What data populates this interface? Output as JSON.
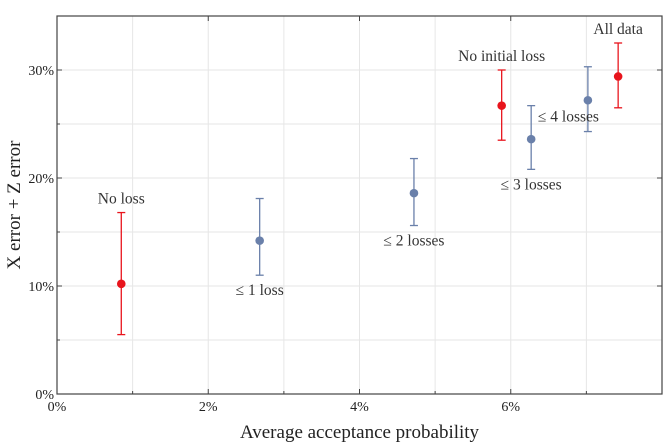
{
  "chart_data": {
    "type": "scatter",
    "title": "",
    "xlabel": "Average acceptance probability",
    "ylabel": "X error + Z error",
    "xlim": [
      0,
      8
    ],
    "ylim": [
      0,
      35
    ],
    "grid": true,
    "x_ticks": [
      {
        "value": 0,
        "label": "0%"
      },
      {
        "value": 2,
        "label": "2%"
      },
      {
        "value": 4,
        "label": "4%"
      },
      {
        "value": 6,
        "label": "6%"
      }
    ],
    "y_ticks": [
      {
        "value": 0,
        "label": "0%"
      },
      {
        "value": 10,
        "label": "10%"
      },
      {
        "value": 20,
        "label": "20%"
      },
      {
        "value": 30,
        "label": "30%"
      }
    ],
    "colors": {
      "red": "#e8141c",
      "blue": "#6a80aa"
    },
    "series": [
      {
        "name": "red",
        "points": [
          {
            "label": "No loss",
            "x": 0.85,
            "y": 10.2,
            "err_low": 5.5,
            "err_high": 16.8,
            "label_anchor": "above"
          },
          {
            "label": "No initial loss",
            "x": 5.88,
            "y": 26.7,
            "err_low": 23.5,
            "err_high": 30.0,
            "label_anchor": "above"
          },
          {
            "label": "All data",
            "x": 7.42,
            "y": 29.4,
            "err_low": 26.5,
            "err_high": 32.5,
            "label_anchor": "above"
          }
        ]
      },
      {
        "name": "blue",
        "points": [
          {
            "label": "≤ 1 loss",
            "x": 2.68,
            "y": 14.2,
            "err_low": 11.0,
            "err_high": 18.1,
            "label_anchor": "below"
          },
          {
            "label": "≤ 2 losses",
            "x": 4.72,
            "y": 18.6,
            "err_low": 15.6,
            "err_high": 21.8,
            "label_anchor": "below"
          },
          {
            "label": "≤ 3 losses",
            "x": 6.27,
            "y": 23.6,
            "err_low": 20.8,
            "err_high": 26.7,
            "label_anchor": "below"
          },
          {
            "label": "≤ 4 losses",
            "x": 7.02,
            "y": 27.2,
            "err_low": 24.3,
            "err_high": 30.3,
            "label_anchor": "below-right"
          }
        ]
      }
    ]
  }
}
